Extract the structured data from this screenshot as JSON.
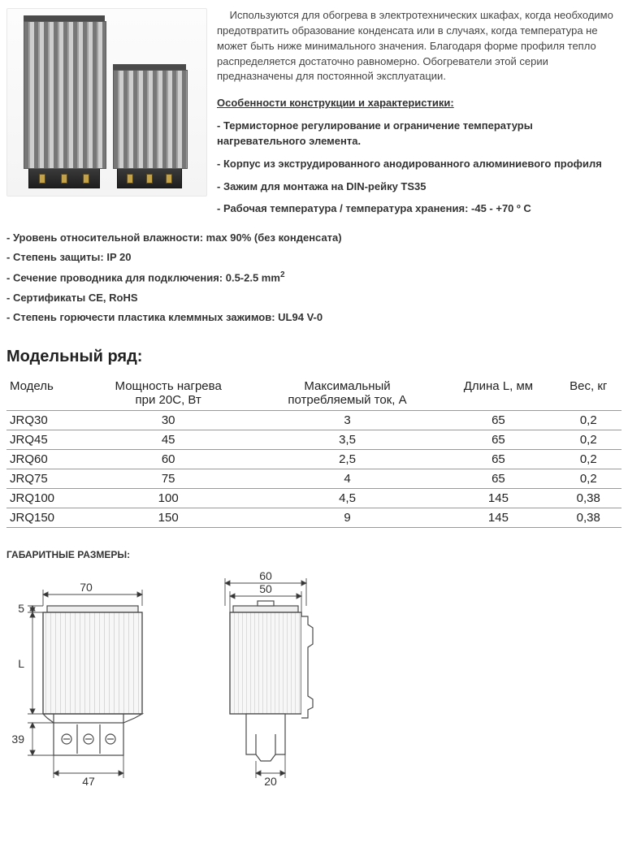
{
  "intro_text": "Используются для обогрева в электротехнических шкафах, когда необходимо предотвратить образование конденсата или в случаях, когда температура не может быть ниже минимального значения. Благодаря форме профиля тепло распределяется достаточно равномерно. Обогреватели этой серии предназначены для постоянной эксплуатации.",
  "features_heading": "Особенности конструкции и характеристики:",
  "feat1": "- Термисторное регулирование и ограничение температуры нагревательного элемента.",
  "feat2": "- Корпус из экструдированного анодированного алюминиевого профиля",
  "feat3": "- Зажим для монтажа на DIN-рейку TS35",
  "feat4": "- Рабочая температура / температура хранения: -45 - +70 º С",
  "feat5": "- Уровень относительной влажности: max 90% (без конденсата)",
  "feat6": "- Степень защиты: IP 20",
  "feat7a": "- Сечение проводника для подключения: 0.5-2.5 mm",
  "feat7b": "2",
  "feat8": "- Сертификаты CE, RoHS",
  "feat9": "- Степень горючести пластика клеммных зажимов: UL94 V-0",
  "range_heading": "Модельный ряд:",
  "table": {
    "head": {
      "c1": "Модель",
      "c2a": "Мощность нагрева",
      "c2b": "при 20С, Вт",
      "c3a": "Максимальный",
      "c3b": "потребляемый  ток, А",
      "c4": "Длина L, мм",
      "c5": "Вес, кг"
    },
    "rows": [
      {
        "m": "JRQ30",
        "p": "30",
        "i": "3",
        "l": "65",
        "w": "0,2"
      },
      {
        "m": "JRQ45",
        "p": "45",
        "i": "3,5",
        "l": "65",
        "w": "0,2"
      },
      {
        "m": "JRQ60",
        "p": "60",
        "i": "2,5",
        "l": "65",
        "w": "0,2"
      },
      {
        "m": "JRQ75",
        "p": "75",
        "i": "4",
        "l": "65",
        "w": "0,2"
      },
      {
        "m": "JRQ100",
        "p": "100",
        "i": "4,5",
        "l": "145",
        "w": "0,38"
      },
      {
        "m": "JRQ150",
        "p": "150",
        "i": "9",
        "l": "145",
        "w": "0,38"
      }
    ]
  },
  "dims_heading": "ГАБАРИТНЫЕ РАЗМЕРЫ:",
  "dims": {
    "d70": "70",
    "d5": "5",
    "dL": "L",
    "d39": "39",
    "d47": "47",
    "d60": "60",
    "d50": "50",
    "d20": "20"
  },
  "drawing_style": {
    "stroke": "#4a4a4a",
    "thin_stroke": "#777",
    "hatch": "#9a9a9a",
    "stroke_width": 1.2,
    "font_size": 14,
    "font_fill": "#333"
  }
}
